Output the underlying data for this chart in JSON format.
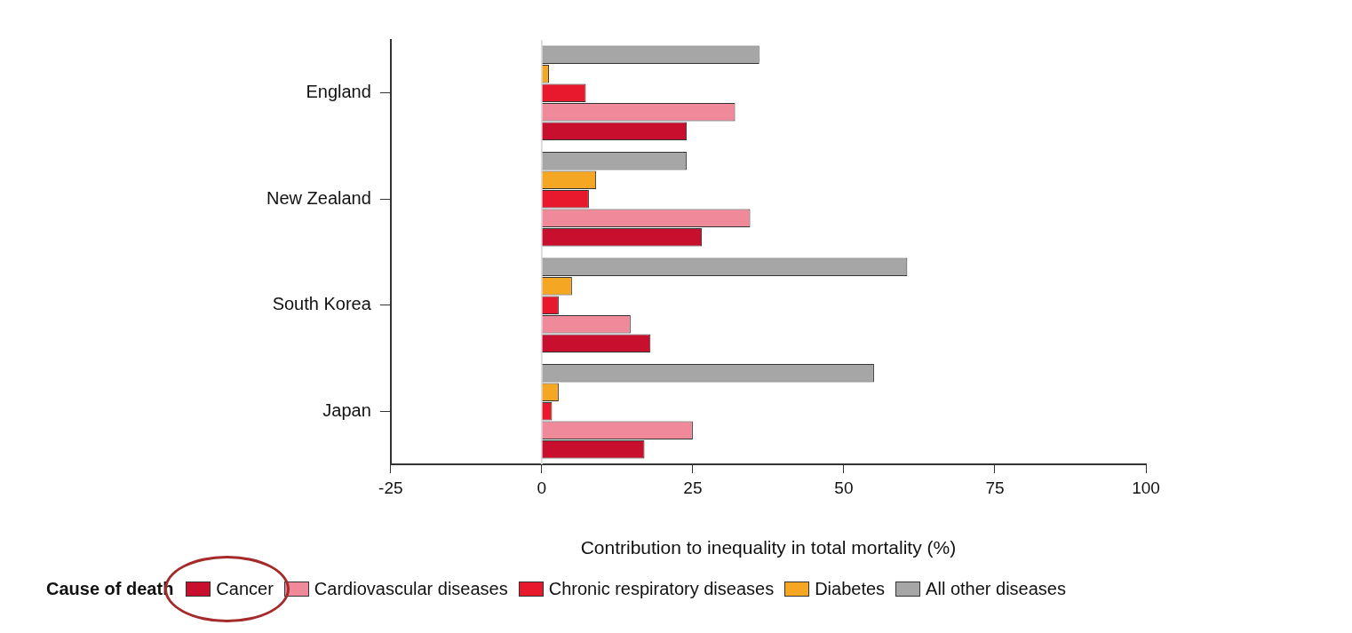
{
  "chart_data": {
    "type": "bar",
    "orientation": "horizontal",
    "categories": [
      "England",
      "New Zealand",
      "South Korea",
      "Japan"
    ],
    "series": [
      {
        "name": "Cancer",
        "color": "#c8102e",
        "values": [
          24,
          26.5,
          18,
          17
        ]
      },
      {
        "name": "Cardiovascular diseases",
        "color": "#f08a9a",
        "values": [
          32,
          34.5,
          14.7,
          25
        ]
      },
      {
        "name": "Chronic respiratory diseases",
        "color": "#e8192c",
        "values": [
          7.3,
          7.8,
          2.8,
          1.7
        ]
      },
      {
        "name": "Diabetes",
        "color": "#f5a623",
        "values": [
          1.2,
          9,
          5,
          2.8
        ]
      },
      {
        "name": "All other diseases",
        "color": "#a6a6a6",
        "values": [
          36,
          24,
          60.5,
          55
        ]
      }
    ],
    "xlim": [
      -25,
      100
    ],
    "xticks": [
      -25,
      0,
      25,
      50,
      75,
      100
    ],
    "xlabel": "Contribution to inequality in total mortality (%)",
    "legend_title": "Cause of death",
    "legend": "bottom",
    "grid": false,
    "ref_lines": [
      {
        "axis": "x",
        "value": 0,
        "color": "#dddddd"
      }
    ]
  }
}
